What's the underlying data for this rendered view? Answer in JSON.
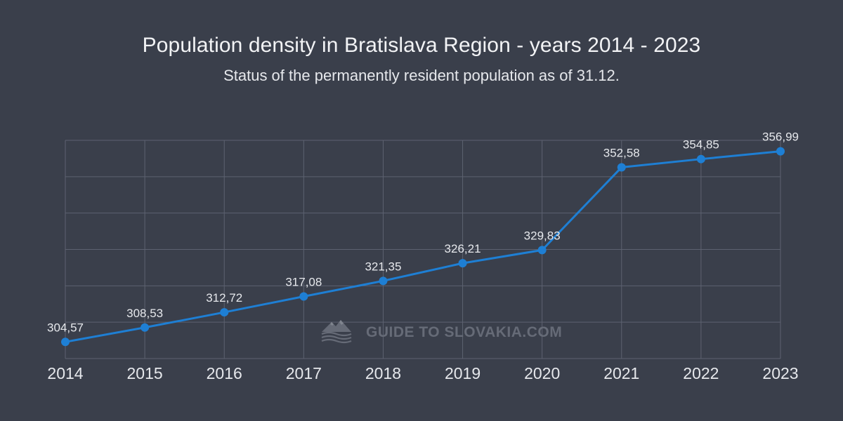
{
  "chart_data": {
    "type": "line",
    "title": "Population density in Bratislava Region - years 2014 - 2023",
    "subtitle": "Status of the permanently resident population as of 31.12.",
    "categories": [
      "2014",
      "2015",
      "2016",
      "2017",
      "2018",
      "2019",
      "2020",
      "2021",
      "2022",
      "2023"
    ],
    "series": [
      {
        "values": [
          304.57,
          308.53,
          312.72,
          317.08,
          321.35,
          326.21,
          329.83,
          352.58,
          354.85,
          356.99
        ],
        "labels": [
          "304,57",
          "308,53",
          "312,72",
          "317,08",
          "321,35",
          "326,21",
          "329,83",
          "352,58",
          "354,85",
          "356,99"
        ],
        "color": "#1e7fd4"
      }
    ],
    "xlabel": "",
    "ylabel": "",
    "ylim": [
      300,
      360
    ],
    "y_ticks_shown": false,
    "grid": true,
    "legend": "none"
  },
  "watermark": {
    "text": "GUIDE TO SLOVAKIA.COM",
    "icon": "mountain-logo-icon",
    "color": "#666b77"
  },
  "colors": {
    "background": "#3a3f4b",
    "grid": "#5d6270",
    "series": "#1e7fd4",
    "text": "#e6e8ec"
  }
}
